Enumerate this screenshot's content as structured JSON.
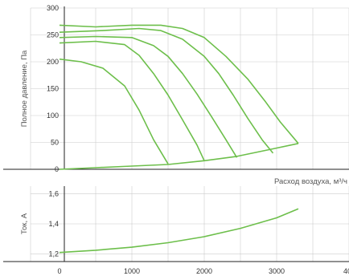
{
  "curve_color": "#6dbf4b",
  "grid_color": "#cccccc",
  "axis_color": "#222222",
  "chart_data": [
    {
      "type": "line",
      "title": "",
      "xlabel": "Расход воздуха, м³/ч",
      "ylabel": "Полное давление, Па",
      "xlim": [
        -400,
        4000
      ],
      "ylim": [
        0,
        300
      ],
      "x_ticks": [],
      "y_ticks": [
        "0",
        "50",
        "100",
        "150",
        "200",
        "250",
        "300"
      ],
      "grid": true,
      "series": [
        {
          "x": [
            0,
            300,
            600,
            900,
            1100,
            1300,
            1500
          ],
          "y": [
            205,
            200,
            188,
            155,
            110,
            55,
            10
          ]
        },
        {
          "x": [
            0,
            500,
            900,
            1100,
            1300,
            1500,
            1700,
            1900,
            2000
          ],
          "y": [
            235,
            238,
            232,
            212,
            178,
            138,
            92,
            45,
            16
          ]
        },
        {
          "x": [
            0,
            500,
            1000,
            1300,
            1500,
            1700,
            1900,
            2100,
            2300,
            2450
          ],
          "y": [
            245,
            247,
            245,
            230,
            210,
            178,
            140,
            98,
            55,
            22
          ]
        },
        {
          "x": [
            0,
            600,
            1100,
            1400,
            1700,
            2000,
            2200,
            2400,
            2600,
            2800,
            2950
          ],
          "y": [
            255,
            258,
            262,
            258,
            242,
            210,
            178,
            138,
            95,
            55,
            30
          ]
        },
        {
          "x": [
            0,
            500,
            1000,
            1400,
            1700,
            2000,
            2300,
            2600,
            2850,
            3050,
            3300
          ],
          "y": [
            268,
            265,
            268,
            268,
            262,
            245,
            210,
            168,
            125,
            88,
            48
          ]
        },
        {
          "x": [
            0,
            500,
            1000,
            1500,
            2000,
            2450,
            2950,
            3300
          ],
          "y": [
            0,
            3,
            6,
            9,
            16,
            24,
            38,
            48
          ]
        }
      ]
    },
    {
      "type": "line",
      "title": "",
      "xlabel": "",
      "ylabel": "Ток, А",
      "xlim": [
        -400,
        4000
      ],
      "ylim": [
        1.15,
        1.65
      ],
      "x_ticks": [
        "0",
        "1000",
        "2000",
        "3000",
        "400"
      ],
      "y_ticks": [
        "1,2",
        "1,4",
        "1,6"
      ],
      "grid": true,
      "series": [
        {
          "x": [
            0,
            500,
            1000,
            1500,
            2000,
            2500,
            3000,
            3300
          ],
          "y": [
            1.21,
            1.225,
            1.245,
            1.275,
            1.315,
            1.37,
            1.44,
            1.5
          ]
        }
      ]
    }
  ]
}
